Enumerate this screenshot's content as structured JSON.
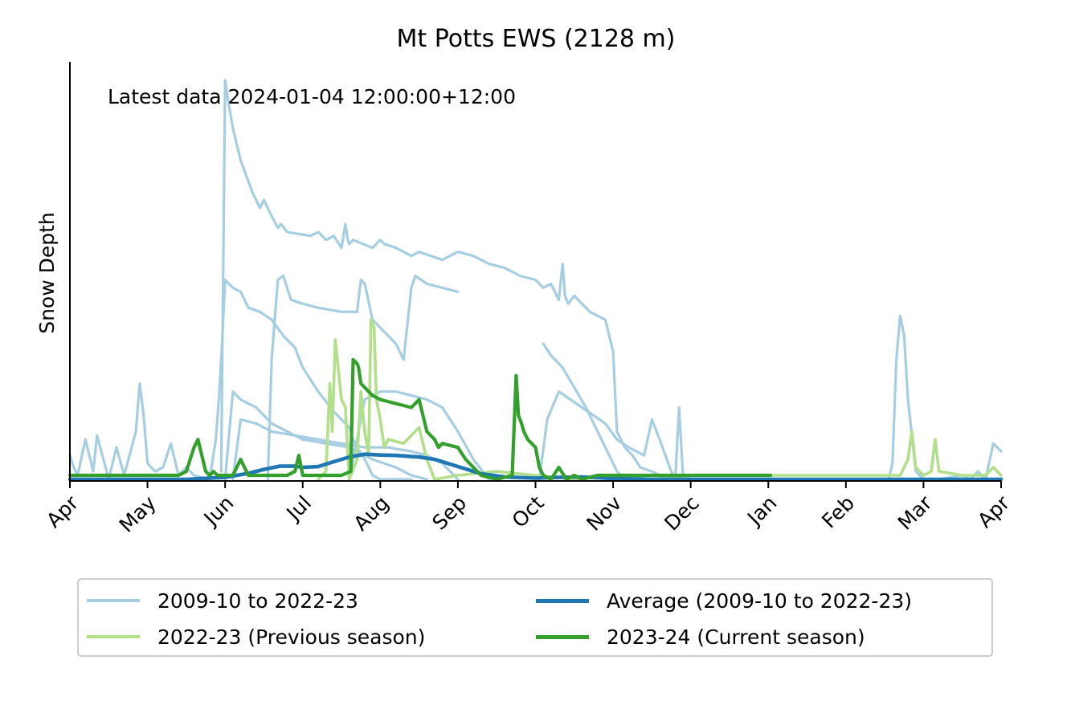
{
  "chart_data": {
    "type": "line",
    "title": "Mt Potts EWS (2128 m)",
    "annotation": "Latest data 2024-01-04 12:00:00+12:00",
    "xlabel": "",
    "ylabel": "Snow Depth",
    "x_unit": "months from 1 April",
    "xlim": [
      0,
      12
    ],
    "ylim": [
      0,
      100
    ],
    "yticks_visible": false,
    "x_ticks": [
      {
        "pos": 0,
        "label": "Apr"
      },
      {
        "pos": 1,
        "label": "May"
      },
      {
        "pos": 2,
        "label": "Jun"
      },
      {
        "pos": 3,
        "label": "Jul"
      },
      {
        "pos": 4,
        "label": "Aug"
      },
      {
        "pos": 5,
        "label": "Sep"
      },
      {
        "pos": 6,
        "label": "Oct"
      },
      {
        "pos": 7,
        "label": "Nov"
      },
      {
        "pos": 8,
        "label": "Dec"
      },
      {
        "pos": 9,
        "label": "Jan"
      },
      {
        "pos": 10,
        "label": "Feb"
      },
      {
        "pos": 11,
        "label": "Mar"
      },
      {
        "pos": 12,
        "label": "Apr"
      }
    ],
    "colors": {
      "historical": "#a6cee3",
      "previous": "#b2df8a",
      "average": "#1f78b4",
      "current": "#33a02c"
    },
    "legend": [
      {
        "label": "2009-10 to 2022-23",
        "color": "#a6cee3",
        "width": 4
      },
      {
        "label": "Average (2009-10 to 2022-23)",
        "color": "#1f78b4",
        "width": 5
      },
      {
        "label": "2022-23 (Previous season)",
        "color": "#b2df8a",
        "width": 4
      },
      {
        "label": "2023-24 (Current season)",
        "color": "#33a02c",
        "width": 5
      }
    ],
    "series": [
      {
        "name": "2009-10 to 2022-23",
        "group": "historical",
        "x": [
          1.95,
          1.98,
          2.0,
          2.03,
          2.1,
          2.2,
          2.35,
          2.45,
          2.5,
          2.6,
          2.68,
          2.72,
          2.8,
          3.1,
          3.2,
          3.3,
          3.4,
          3.5,
          3.55,
          3.58,
          3.6,
          3.65,
          3.9,
          4.0,
          4.05,
          4.2,
          4.3,
          4.4,
          4.5,
          4.8,
          5.0,
          5.2,
          5.4,
          5.6,
          5.8,
          6.0,
          6.1,
          6.2,
          6.3,
          6.35,
          6.38,
          6.42,
          6.5,
          6.7,
          6.9,
          7.0,
          7.05,
          7.15,
          7.25,
          7.35,
          7.5,
          7.6,
          7.8,
          8.0
        ],
        "y": [
          2,
          60,
          100,
          96,
          88,
          80,
          72,
          68,
          70,
          66,
          63,
          64,
          62,
          61,
          62,
          60,
          61,
          58,
          64,
          60,
          59,
          60,
          58,
          60,
          59,
          58,
          57,
          56,
          57,
          55,
          57,
          56,
          54,
          53,
          51,
          50,
          48,
          49,
          45,
          54,
          46,
          44,
          46,
          42,
          40,
          32,
          12,
          8,
          6,
          3,
          2,
          1,
          0.5,
          0
        ]
      },
      {
        "name": "2009-10 to 2022-23",
        "group": "historical",
        "x": [
          1.8,
          1.88,
          1.92,
          1.95,
          2.0,
          2.1,
          2.2,
          2.3,
          2.45,
          2.6,
          2.75,
          2.9,
          3.0,
          3.2,
          3.4,
          3.6,
          3.65,
          3.7,
          3.8,
          3.85,
          3.9,
          4.0,
          4.1,
          4.2,
          4.4
        ],
        "y": [
          0,
          10,
          20,
          30,
          50,
          48,
          47,
          43,
          42,
          40,
          36,
          33,
          28,
          22,
          17,
          13,
          10,
          8,
          5,
          3,
          1,
          0,
          0,
          0,
          0
        ]
      },
      {
        "name": "2009-10 to 2022-23",
        "group": "historical",
        "x": [
          2.55,
          2.6,
          2.68,
          2.75,
          2.85,
          3.0,
          3.2,
          3.5,
          3.7,
          3.75,
          3.8,
          3.9,
          4.0,
          4.2,
          4.3,
          4.4,
          4.45,
          4.6,
          4.8,
          5.0
        ],
        "y": [
          0,
          30,
          50,
          51,
          45,
          44,
          43,
          42,
          42,
          50,
          49,
          40,
          38,
          34,
          30,
          48,
          51,
          49,
          48,
          47
        ]
      },
      {
        "name": "2009-10 to 2022-23",
        "group": "historical",
        "x": [
          6.1,
          6.2,
          6.35,
          6.5,
          6.65,
          6.8,
          6.95,
          7.05,
          7.1,
          7.2
        ],
        "y": [
          34,
          31,
          28,
          23,
          18,
          12,
          6,
          2,
          1,
          0
        ]
      },
      {
        "name": "2009-10 to 2022-23",
        "group": "historical",
        "x": [
          2.0,
          2.1,
          2.2,
          2.4,
          2.6,
          2.8,
          3.0,
          3.3,
          3.6,
          3.9,
          4.2,
          4.4,
          4.6
        ],
        "y": [
          0,
          22,
          20,
          18,
          14,
          12,
          10,
          9,
          8,
          5,
          3,
          1,
          0
        ]
      },
      {
        "name": "2009-10 to 2022-23",
        "group": "historical",
        "x": [
          2.1,
          2.2,
          2.4,
          2.6,
          2.9,
          3.2,
          3.5,
          3.8,
          4.1,
          4.4,
          4.6,
          4.8,
          5.0
        ],
        "y": [
          0,
          15,
          14,
          12,
          11,
          10,
          9,
          8,
          8,
          7,
          6,
          4,
          0
        ]
      },
      {
        "name": "2009-10 to 2022-23",
        "group": "historical",
        "x": [
          3.6,
          3.8,
          4.0,
          4.2,
          4.4,
          4.6,
          4.8,
          5.0,
          5.2,
          5.4
        ],
        "y": [
          0,
          20,
          22,
          22,
          21,
          20,
          18,
          12,
          5,
          0
        ]
      },
      {
        "name": "2009-10 to 2022-23",
        "group": "historical",
        "x": [
          6.05,
          6.15,
          6.3,
          6.45,
          6.6,
          6.75,
          6.9,
          7.05,
          7.2,
          7.4,
          7.5,
          7.6,
          7.75,
          7.8,
          7.85,
          7.9,
          8.0
        ],
        "y": [
          0,
          15,
          22,
          20,
          18,
          16,
          14,
          10,
          8,
          6,
          15,
          10,
          2,
          0,
          18,
          1,
          0
        ]
      },
      {
        "name": "2009-10 to 2022-23",
        "group": "historical",
        "x": [
          0.0,
          0.05,
          0.1,
          0.2,
          0.3,
          0.35,
          0.5,
          0.6,
          0.7,
          0.85,
          0.9,
          0.95,
          1.0,
          1.1,
          1.2,
          1.3,
          1.4,
          1.5,
          1.6,
          1.8
        ],
        "y": [
          6,
          3,
          1,
          10,
          2,
          11,
          0,
          8,
          1,
          12,
          24,
          16,
          4,
          2,
          3,
          9,
          1,
          3,
          1,
          0
        ]
      },
      {
        "name": "2009-10 to 2022-23",
        "group": "historical",
        "x": [
          9.0,
          9.3,
          9.6,
          9.9,
          10.2,
          10.4,
          10.55,
          10.6,
          10.65,
          10.7,
          10.75,
          10.8,
          10.9,
          11.0,
          11.2,
          11.5,
          11.6,
          11.7,
          11.8,
          11.9,
          11.95,
          12.0
        ],
        "y": [
          0,
          0,
          0,
          0,
          0,
          0,
          0,
          4,
          30,
          41,
          36,
          20,
          2,
          0,
          0,
          1,
          0,
          2,
          0,
          9,
          8,
          7
        ]
      },
      {
        "name": "2022-23 (Previous season)",
        "group": "previous",
        "x": [
          3.2,
          3.3,
          3.35,
          3.38,
          3.42,
          3.5,
          3.55,
          3.6,
          3.7,
          3.75,
          3.8,
          3.85,
          3.88,
          3.92,
          3.95,
          4.0,
          4.05,
          4.1,
          4.3,
          4.5,
          4.6,
          4.7,
          5.0,
          5.5,
          6.0,
          6.5,
          7.0,
          7.5,
          8.0,
          8.5,
          9.0,
          9.5,
          10.0,
          10.5,
          10.7,
          10.8,
          10.85,
          10.9,
          11.0,
          11.1,
          11.15,
          11.2,
          11.5,
          11.8,
          11.9,
          12.0
        ],
        "y": [
          0,
          2,
          24,
          12,
          35,
          20,
          18,
          0,
          5,
          22,
          12,
          6,
          40,
          38,
          20,
          15,
          8,
          10,
          9,
          13,
          5,
          0,
          1,
          2,
          1,
          0,
          1,
          0,
          1,
          1,
          1,
          1,
          1,
          1,
          1,
          5,
          12,
          3,
          1,
          2,
          10,
          2,
          1,
          1,
          3,
          1
        ]
      },
      {
        "name": "Average (2009-10 to 2022-23)",
        "group": "average",
        "x": [
          0,
          0.5,
          1.0,
          1.5,
          2.0,
          2.3,
          2.5,
          2.7,
          2.9,
          3.0,
          3.2,
          3.4,
          3.6,
          3.8,
          4.0,
          4.2,
          4.5,
          4.7,
          5.0,
          5.3,
          5.6,
          6.0,
          6.3,
          6.6,
          7.0,
          7.5,
          8.0,
          9.0,
          10.0,
          11.0,
          12.0
        ],
        "y": [
          0,
          0,
          0,
          0,
          0.5,
          1.5,
          2.5,
          3.3,
          3.3,
          3.0,
          3.2,
          4.4,
          5.6,
          6.3,
          6.1,
          6.0,
          5.6,
          5.0,
          3.2,
          1.4,
          0.6,
          0.3,
          0.5,
          0.6,
          0.2,
          0,
          0,
          0,
          0,
          0,
          0
        ]
      },
      {
        "name": "2023-24 (Current season)",
        "group": "current",
        "x": [
          0,
          0.5,
          1.0,
          1.4,
          1.5,
          1.55,
          1.6,
          1.65,
          1.7,
          1.75,
          1.8,
          1.85,
          1.9,
          2.0,
          2.1,
          2.15,
          2.2,
          2.25,
          2.3,
          2.4,
          2.6,
          2.8,
          2.9,
          2.95,
          3.0,
          3.1,
          3.3,
          3.5,
          3.62,
          3.65,
          3.7,
          3.72,
          3.75,
          3.8,
          3.85,
          3.9,
          4.0,
          4.2,
          4.4,
          4.5,
          4.6,
          4.7,
          4.75,
          4.8,
          5.0,
          5.1,
          5.2,
          5.3,
          5.5,
          5.7,
          5.75,
          5.78,
          5.82,
          5.85,
          5.9,
          6.0,
          6.05,
          6.1,
          6.2,
          6.3,
          6.4,
          6.5,
          6.6,
          6.8,
          7.0,
          7.1,
          7.2,
          7.3,
          7.5,
          7.8,
          8.0,
          8.5,
          9.0,
          9.03
        ],
        "y": [
          1,
          1,
          1,
          1,
          2,
          5,
          8,
          10,
          6,
          2,
          1,
          2,
          1,
          1,
          1,
          3,
          5,
          3,
          1,
          1,
          1,
          1,
          2,
          6,
          1,
          1,
          1,
          1,
          2,
          30,
          29,
          28,
          24,
          23,
          22,
          21,
          20,
          19,
          18,
          20,
          12,
          10,
          8,
          9,
          8,
          5,
          3,
          1,
          0,
          1,
          26,
          16,
          14,
          12,
          10,
          8,
          3,
          1,
          0,
          3,
          0,
          1,
          0,
          1,
          1,
          1,
          1,
          1,
          1,
          1,
          1,
          1,
          1,
          1
        ]
      }
    ]
  }
}
